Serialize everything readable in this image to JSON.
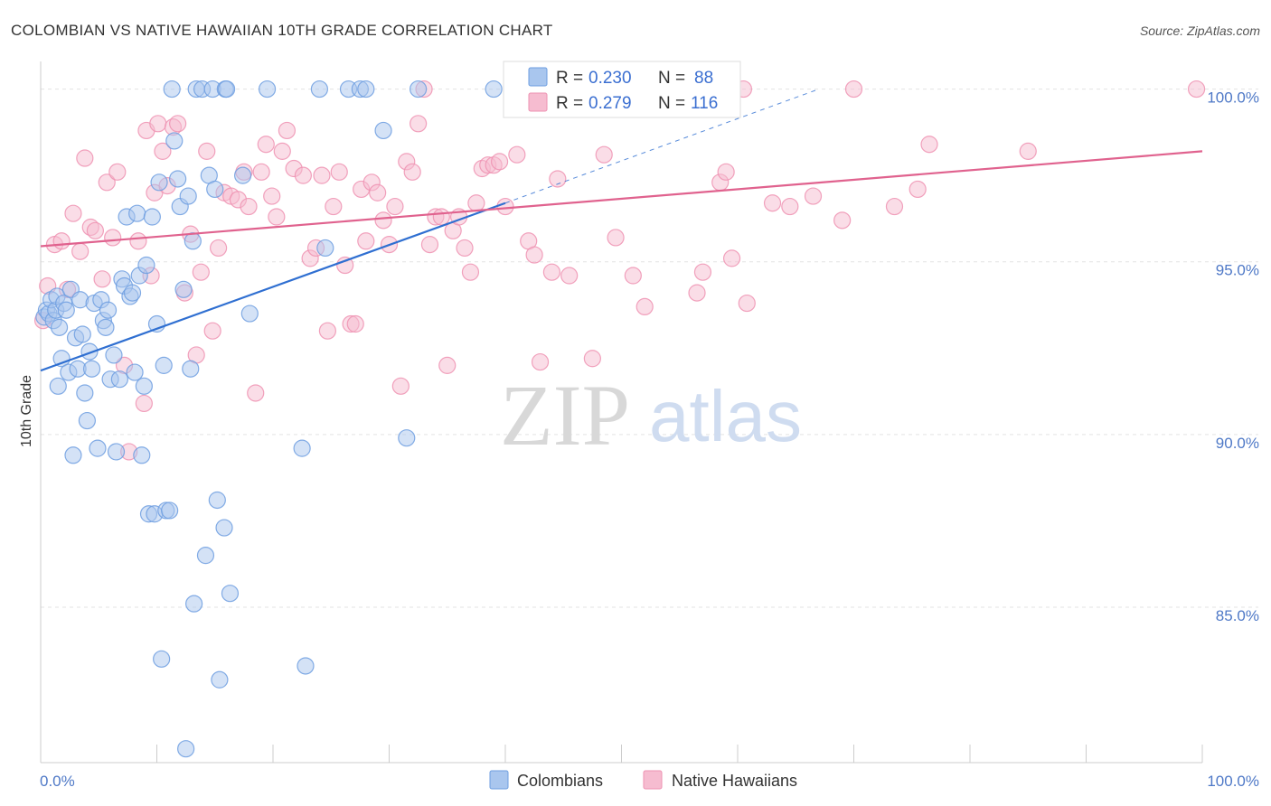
{
  "title": "COLOMBIAN VS NATIVE HAWAIIAN 10TH GRADE CORRELATION CHART",
  "source": "Source: ZipAtlas.com",
  "watermark": {
    "zip": "ZIP",
    "atlas": "atlas"
  },
  "colors": {
    "colombian_fill": "#a9c6ee",
    "colombian_stroke": "#6d9ee0",
    "colombian_line": "#2f6fd1",
    "hawaiian_fill": "#f6bcd0",
    "hawaiian_stroke": "#ee92b2",
    "hawaiian_line": "#e0628e",
    "grid": "#e3e3e3",
    "tick_text": "#4f79c7"
  },
  "legend": {
    "rows": [
      {
        "r_label": "R =",
        "r_value": "0.230",
        "n_label": "N =",
        "n_value": "88"
      },
      {
        "r_label": "R =",
        "r_value": "0.279",
        "n_label": "N =",
        "n_value": "116"
      }
    ],
    "bottom": [
      "Colombians",
      "Native Hawaiians"
    ]
  },
  "chart_data": {
    "type": "scatter",
    "title": "COLOMBIAN VS NATIVE HAWAIIAN 10TH GRADE CORRELATION CHART",
    "xlabel": "",
    "ylabel": "10th Grade",
    "xlim": [
      0,
      100
    ],
    "ylim": [
      80.5,
      100.8
    ],
    "x_tick_labels": [
      "0.0%",
      "100.0%"
    ],
    "y_ticks": [
      85,
      90,
      95,
      100
    ],
    "y_tick_labels": [
      "85.0%",
      "90.0%",
      "95.0%",
      "100.0%"
    ],
    "grid": true,
    "legend_position": "top-center",
    "series": [
      {
        "name": "Colombians",
        "r": 0.23,
        "n": 88,
        "trend": {
          "x": [
            0,
            40
          ],
          "y": [
            91.85,
            96.7
          ],
          "dashed_extension": {
            "x": [
              40,
              67
            ],
            "y": [
              96.7,
              100.0
            ]
          }
        },
        "points": [
          [
            0.3,
            93.4
          ],
          [
            0.5,
            93.6
          ],
          [
            0.7,
            93.5
          ],
          [
            0.9,
            93.9
          ],
          [
            1.1,
            93.3
          ],
          [
            1.3,
            93.6
          ],
          [
            1.4,
            94.0
          ],
          [
            1.6,
            93.1
          ],
          [
            1.5,
            91.4
          ],
          [
            1.8,
            92.2
          ],
          [
            2.0,
            93.8
          ],
          [
            2.2,
            93.6
          ],
          [
            2.4,
            91.8
          ],
          [
            2.6,
            94.2
          ],
          [
            2.8,
            89.4
          ],
          [
            3.0,
            92.8
          ],
          [
            3.2,
            91.9
          ],
          [
            3.4,
            93.9
          ],
          [
            3.6,
            92.9
          ],
          [
            3.8,
            91.2
          ],
          [
            4.0,
            90.4
          ],
          [
            4.2,
            92.4
          ],
          [
            4.4,
            91.9
          ],
          [
            4.6,
            93.8
          ],
          [
            4.9,
            89.6
          ],
          [
            5.2,
            93.9
          ],
          [
            5.4,
            93.3
          ],
          [
            5.6,
            93.1
          ],
          [
            5.8,
            93.6
          ],
          [
            6.0,
            91.6
          ],
          [
            6.3,
            92.3
          ],
          [
            6.5,
            89.5
          ],
          [
            6.8,
            91.6
          ],
          [
            7.0,
            94.5
          ],
          [
            7.2,
            94.3
          ],
          [
            7.4,
            96.3
          ],
          [
            7.7,
            94.0
          ],
          [
            7.9,
            94.1
          ],
          [
            8.1,
            91.8
          ],
          [
            8.3,
            96.4
          ],
          [
            8.5,
            94.6
          ],
          [
            8.7,
            89.4
          ],
          [
            8.9,
            91.4
          ],
          [
            9.1,
            94.9
          ],
          [
            9.3,
            87.7
          ],
          [
            9.6,
            96.3
          ],
          [
            9.8,
            87.7
          ],
          [
            10.0,
            93.2
          ],
          [
            10.2,
            97.3
          ],
          [
            10.4,
            83.5
          ],
          [
            10.6,
            92.0
          ],
          [
            10.8,
            87.8
          ],
          [
            11.1,
            87.8
          ],
          [
            11.3,
            100.0
          ],
          [
            11.5,
            98.5
          ],
          [
            11.8,
            97.4
          ],
          [
            12.0,
            96.6
          ],
          [
            12.3,
            94.2
          ],
          [
            12.5,
            80.9
          ],
          [
            12.7,
            96.9
          ],
          [
            12.9,
            91.9
          ],
          [
            13.1,
            95.6
          ],
          [
            13.2,
            85.1
          ],
          [
            13.4,
            100.0
          ],
          [
            13.9,
            100.0
          ],
          [
            14.2,
            86.5
          ],
          [
            14.5,
            97.5
          ],
          [
            14.8,
            100.0
          ],
          [
            15.0,
            97.1
          ],
          [
            15.2,
            88.1
          ],
          [
            15.4,
            82.9
          ],
          [
            15.8,
            87.3
          ],
          [
            15.9,
            100.0
          ],
          [
            16.0,
            100.0
          ],
          [
            16.3,
            85.4
          ],
          [
            17.4,
            97.5
          ],
          [
            18.0,
            93.5
          ],
          [
            19.5,
            100.0
          ],
          [
            22.5,
            89.6
          ],
          [
            22.8,
            83.3
          ],
          [
            24.0,
            100.0
          ],
          [
            24.5,
            95.4
          ],
          [
            26.5,
            100.0
          ],
          [
            27.5,
            100.0
          ],
          [
            28.0,
            100.0
          ],
          [
            29.5,
            98.8
          ],
          [
            31.5,
            89.9
          ],
          [
            32.5,
            100.0
          ],
          [
            39.0,
            100.0
          ]
        ]
      },
      {
        "name": "Native Hawaiians",
        "r": 0.279,
        "n": 116,
        "trend": {
          "x": [
            0,
            100
          ],
          "y": [
            95.45,
            98.2
          ]
        },
        "points": [
          [
            0.2,
            93.3
          ],
          [
            0.6,
            94.3
          ],
          [
            1.2,
            95.5
          ],
          [
            1.8,
            95.6
          ],
          [
            2.3,
            94.2
          ],
          [
            2.8,
            96.4
          ],
          [
            3.4,
            95.3
          ],
          [
            3.8,
            98.0
          ],
          [
            4.3,
            96.0
          ],
          [
            4.7,
            95.9
          ],
          [
            5.3,
            94.5
          ],
          [
            5.7,
            97.3
          ],
          [
            6.2,
            95.7
          ],
          [
            6.6,
            97.6
          ],
          [
            7.2,
            92.0
          ],
          [
            7.6,
            89.5
          ],
          [
            8.4,
            95.6
          ],
          [
            8.9,
            90.9
          ],
          [
            9.1,
            98.8
          ],
          [
            9.5,
            94.6
          ],
          [
            9.8,
            97.0
          ],
          [
            10.1,
            99.0
          ],
          [
            10.5,
            98.2
          ],
          [
            10.9,
            97.2
          ],
          [
            11.4,
            98.9
          ],
          [
            11.8,
            99.0
          ],
          [
            12.4,
            94.1
          ],
          [
            12.9,
            95.8
          ],
          [
            13.4,
            92.3
          ],
          [
            13.8,
            94.7
          ],
          [
            14.3,
            98.2
          ],
          [
            14.8,
            93.0
          ],
          [
            15.3,
            95.4
          ],
          [
            15.8,
            97.0
          ],
          [
            16.4,
            96.9
          ],
          [
            17.0,
            96.8
          ],
          [
            17.5,
            97.6
          ],
          [
            17.9,
            96.6
          ],
          [
            18.5,
            91.2
          ],
          [
            19.0,
            97.6
          ],
          [
            19.4,
            98.4
          ],
          [
            19.9,
            96.9
          ],
          [
            20.3,
            96.3
          ],
          [
            20.8,
            98.2
          ],
          [
            21.2,
            98.8
          ],
          [
            21.8,
            97.7
          ],
          [
            22.6,
            97.5
          ],
          [
            23.2,
            95.1
          ],
          [
            23.7,
            95.4
          ],
          [
            24.2,
            97.5
          ],
          [
            24.7,
            93.0
          ],
          [
            25.2,
            96.6
          ],
          [
            25.7,
            97.6
          ],
          [
            26.2,
            94.9
          ],
          [
            26.7,
            93.2
          ],
          [
            27.1,
            93.2
          ],
          [
            27.6,
            97.1
          ],
          [
            28.0,
            95.6
          ],
          [
            28.5,
            97.3
          ],
          [
            29.0,
            97.0
          ],
          [
            29.5,
            96.2
          ],
          [
            30.0,
            95.5
          ],
          [
            30.5,
            96.6
          ],
          [
            31.0,
            91.4
          ],
          [
            31.5,
            97.9
          ],
          [
            32.0,
            97.6
          ],
          [
            32.5,
            99.0
          ],
          [
            33.0,
            100.0
          ],
          [
            33.5,
            95.5
          ],
          [
            34.0,
            96.3
          ],
          [
            34.5,
            96.3
          ],
          [
            35.0,
            92.0
          ],
          [
            35.5,
            95.9
          ],
          [
            36.0,
            96.3
          ],
          [
            36.5,
            95.4
          ],
          [
            37.0,
            94.7
          ],
          [
            37.5,
            96.7
          ],
          [
            38.0,
            97.7
          ],
          [
            38.5,
            97.8
          ],
          [
            39.0,
            97.8
          ],
          [
            39.5,
            97.9
          ],
          [
            40.0,
            96.6
          ],
          [
            41.0,
            98.1
          ],
          [
            42.0,
            95.6
          ],
          [
            42.5,
            95.2
          ],
          [
            43.0,
            92.1
          ],
          [
            44.0,
            94.7
          ],
          [
            44.5,
            97.4
          ],
          [
            45.5,
            94.6
          ],
          [
            46.0,
            100.0
          ],
          [
            47.5,
            92.2
          ],
          [
            48.5,
            98.1
          ],
          [
            49.5,
            95.7
          ],
          [
            51.0,
            94.6
          ],
          [
            52.0,
            93.7
          ],
          [
            55.0,
            100.0
          ],
          [
            56.0,
            100.0
          ],
          [
            56.5,
            94.1
          ],
          [
            57.0,
            94.7
          ],
          [
            58.5,
            97.3
          ],
          [
            59.0,
            97.6
          ],
          [
            59.5,
            95.1
          ],
          [
            60.5,
            100.0
          ],
          [
            60.8,
            93.8
          ],
          [
            63.0,
            96.7
          ],
          [
            64.5,
            96.6
          ],
          [
            66.5,
            96.9
          ],
          [
            69.0,
            96.2
          ],
          [
            70.0,
            100.0
          ],
          [
            73.5,
            96.6
          ],
          [
            75.5,
            97.1
          ],
          [
            76.5,
            98.4
          ],
          [
            85.0,
            98.2
          ],
          [
            99.5,
            100.0
          ]
        ]
      }
    ]
  }
}
